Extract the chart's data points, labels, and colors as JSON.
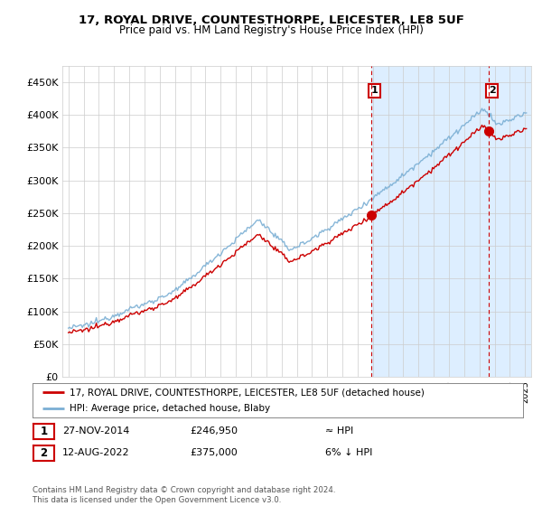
{
  "title_line1": "17, ROYAL DRIVE, COUNTESTHORPE, LEICESTER, LE8 5UF",
  "title_line2": "Price paid vs. HM Land Registry's House Price Index (HPI)",
  "line1_color": "#cc0000",
  "line2_color": "#7bafd4",
  "vline_color": "#cc0000",
  "sale1_x": 2014.92,
  "sale1_y": 246950,
  "sale2_x": 2022.62,
  "sale2_y": 375000,
  "legend_label1": "17, ROYAL DRIVE, COUNTESTHORPE, LEICESTER, LE8 5UF (detached house)",
  "legend_label2": "HPI: Average price, detached house, Blaby",
  "annotation1_label": "1",
  "annotation2_label": "2",
  "table_row1": [
    "1",
    "27-NOV-2014",
    "£246,950",
    "≈ HPI"
  ],
  "table_row2": [
    "2",
    "12-AUG-2022",
    "£375,000",
    "6% ↓ HPI"
  ],
  "footnote": "Contains HM Land Registry data © Crown copyright and database right 2024.\nThis data is licensed under the Open Government Licence v3.0.",
  "ylim": [
    0,
    475000
  ],
  "yticks": [
    0,
    50000,
    100000,
    150000,
    200000,
    250000,
    300000,
    350000,
    400000,
    450000
  ],
  "ytick_labels": [
    "£0",
    "£50K",
    "£100K",
    "£150K",
    "£200K",
    "£250K",
    "£300K",
    "£350K",
    "£400K",
    "£450K"
  ],
  "xlim_start": 1994.6,
  "xlim_end": 2025.4,
  "shade_color": "#ddeeff",
  "bg_color": "#ffffff",
  "plot_bg_color": "#ffffff"
}
